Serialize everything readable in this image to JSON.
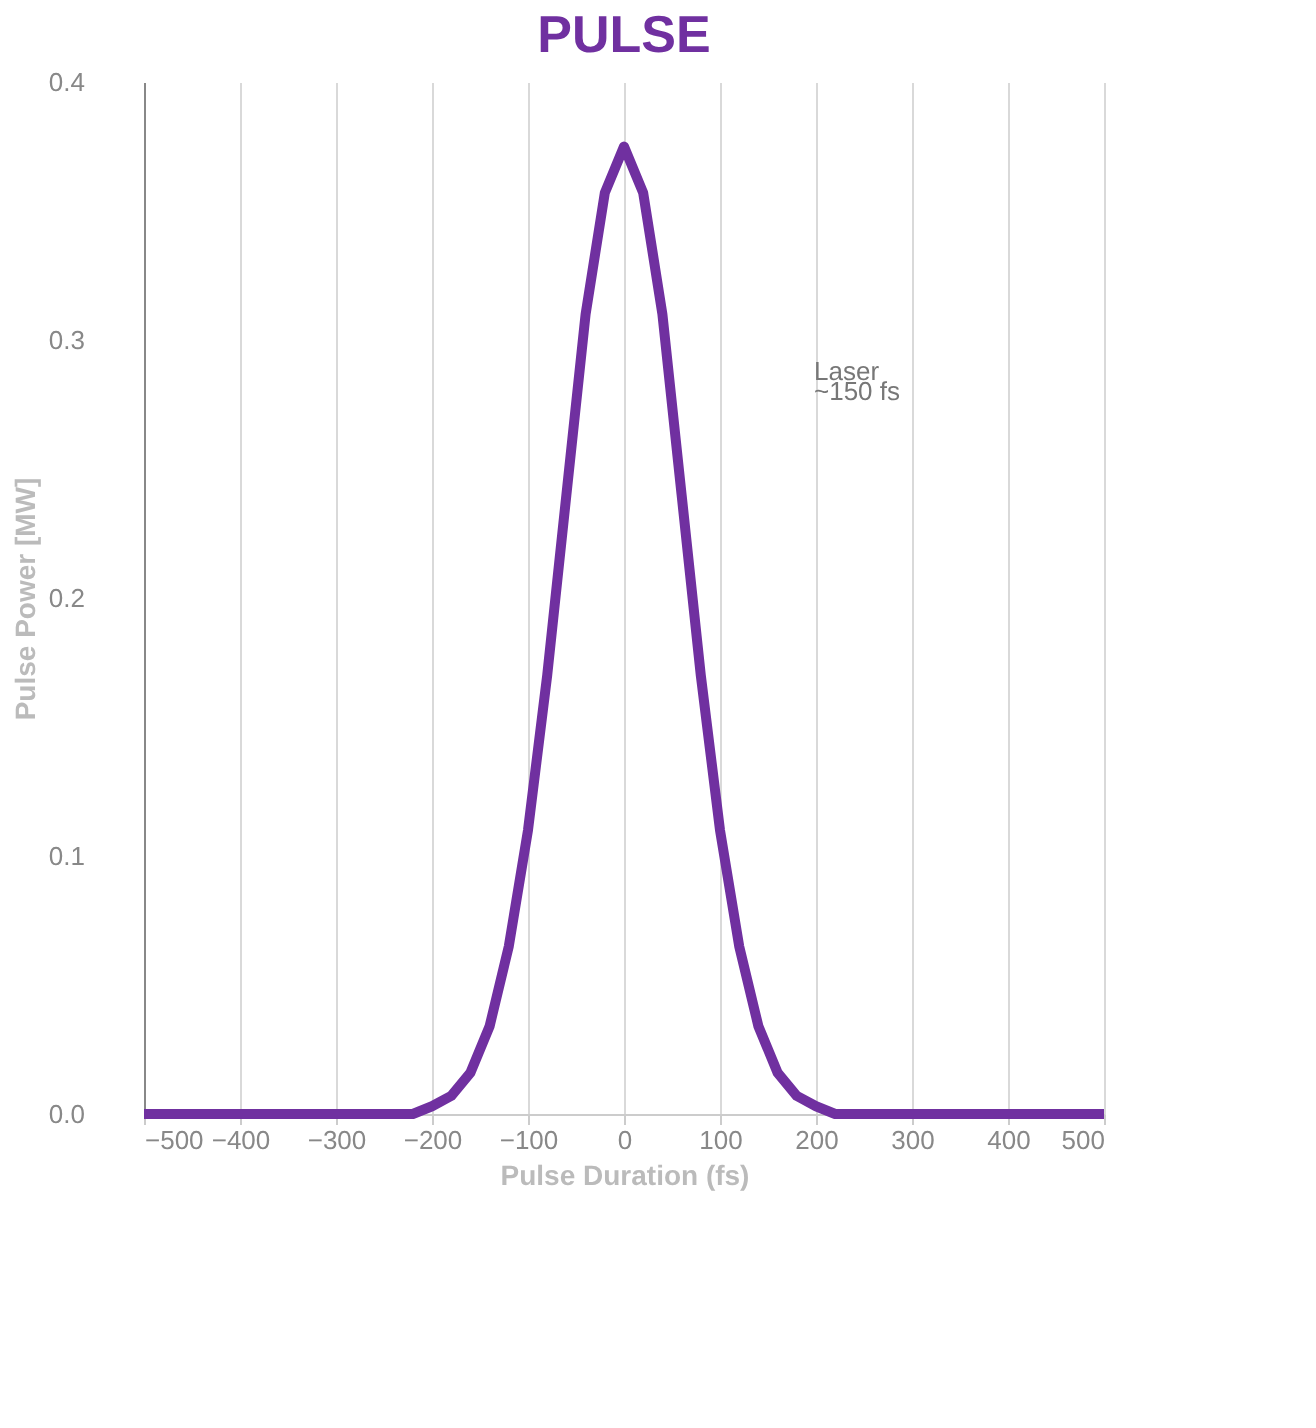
{
  "chart_data": {
    "type": "line",
    "title": "PULSE",
    "xlabel": "Pulse Duration (fs)",
    "ylabel": "Pulse Power [MW]",
    "x": [
      -500,
      -250,
      -220,
      -200,
      -180,
      -160,
      -140,
      -120,
      -100,
      -80,
      -60,
      -40,
      -20,
      0,
      20,
      40,
      60,
      80,
      100,
      120,
      140,
      160,
      180,
      200,
      220,
      250,
      500
    ],
    "series": [
      {
        "color": "#7030a0",
        "values": [
          0,
          0,
          0,
          0.003,
          0.007,
          0.016,
          0.034,
          0.065,
          0.11,
          0.17,
          0.24,
          0.31,
          0.357,
          0.375,
          0.357,
          0.31,
          0.24,
          0.17,
          0.11,
          0.065,
          0.034,
          0.016,
          0.007,
          0.003,
          0,
          0,
          0
        ]
      }
    ],
    "xlim": [
      -500,
      500
    ],
    "xticks": [
      -500,
      -400,
      -300,
      -200,
      -100,
      0,
      100,
      200,
      300,
      400,
      500
    ],
    "ylim": [
      0,
      0.4
    ],
    "yticks": [
      {
        "value": 0,
        "label": "0.0"
      },
      0.1,
      0.2,
      0.3,
      0.4
    ],
    "grid": "x",
    "legend": false,
    "marker": "none",
    "line_style": "solid",
    "annotations": [
      "Laser",
      "~150 fs"
    ]
  }
}
